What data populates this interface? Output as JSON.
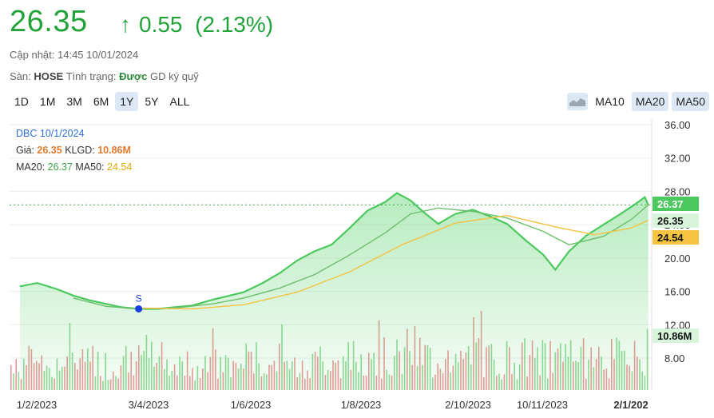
{
  "header": {
    "price": "26.35",
    "arrow": "↑",
    "change": "0.55",
    "change_pct": "(2.13%)",
    "updated_label": "Cập nhật:",
    "updated_value": "14:45 10/01/2024",
    "exchange_label": "Sàn:",
    "exchange_value": "HOSE",
    "status_label": "Tình trạng:",
    "status_value": "Được",
    "margin_text": "GD ký quỹ"
  },
  "ranges": [
    "1D",
    "1M",
    "3M",
    "6M",
    "1Y",
    "5Y",
    "ALL"
  ],
  "active_range": "1Y",
  "tools": {
    "ma10": "MA10",
    "ma20": "MA20",
    "ma50": "MA50",
    "chart_type_icon": "area-chart-icon"
  },
  "tooltip": {
    "ticker_date": "DBC 10/1/2024",
    "price_label": "Giá:",
    "price_value": "26.35",
    "vol_label": "KLGD:",
    "vol_value": "10.86M",
    "ma20_label": "MA20:",
    "ma20_value": "26.37",
    "ma50_label": "MA50:",
    "ma50_value": "24.54"
  },
  "colors": {
    "up": "#22a33a",
    "down": "#e06b6b",
    "price_line": "#4cc95e",
    "ma20": "#6cbf6c",
    "ma50": "#f3c242",
    "marker": "#1a3fe0"
  },
  "chart_data": {
    "type": "area",
    "y_ticks": [
      "36.00",
      "32.00",
      "28.00",
      "24.00",
      "20.00",
      "16.00",
      "12.00",
      "8.00"
    ],
    "ylim": [
      8,
      36
    ],
    "x_ticks": [
      "1/2/2023",
      "3/4/2023",
      "1/6/2023",
      "1/8/2023",
      "2/10/2023",
      "10/11/2023",
      "2/1/202"
    ],
    "last_labels": {
      "ma20": "26.37",
      "price": "26.35",
      "ma50": "24.54",
      "volume": "10.86M"
    },
    "signal_marker": "S",
    "price_series": [
      [
        "2023-01-10",
        16.6
      ],
      [
        "2023-01-20",
        17.0
      ],
      [
        "2023-01-31",
        16.3
      ],
      [
        "2023-02-10",
        15.5
      ],
      [
        "2023-02-20",
        14.9
      ],
      [
        "2023-03-01",
        14.5
      ],
      [
        "2023-03-10",
        14.1
      ],
      [
        "2023-03-20",
        13.9
      ],
      [
        "2023-03-31",
        13.9
      ],
      [
        "2023-04-10",
        14.1
      ],
      [
        "2023-04-20",
        14.3
      ],
      [
        "2023-05-02",
        15.0
      ],
      [
        "2023-05-10",
        15.4
      ],
      [
        "2023-05-20",
        15.9
      ],
      [
        "2023-05-31",
        17.0
      ],
      [
        "2023-06-10",
        18.2
      ],
      [
        "2023-06-20",
        19.7
      ],
      [
        "2023-06-30",
        20.8
      ],
      [
        "2023-07-10",
        21.6
      ],
      [
        "2023-07-20",
        23.5
      ],
      [
        "2023-07-31",
        25.7
      ],
      [
        "2023-08-10",
        26.7
      ],
      [
        "2023-08-17",
        27.8
      ],
      [
        "2023-08-25",
        26.9
      ],
      [
        "2023-09-01",
        25.6
      ],
      [
        "2023-09-10",
        24.1
      ],
      [
        "2023-09-20",
        25.3
      ],
      [
        "2023-09-30",
        25.8
      ],
      [
        "2023-10-10",
        25.0
      ],
      [
        "2023-10-20",
        24.1
      ],
      [
        "2023-10-31",
        22.1
      ],
      [
        "2023-11-10",
        20.4
      ],
      [
        "2023-11-17",
        18.6
      ],
      [
        "2023-11-25",
        20.8
      ],
      [
        "2023-12-05",
        22.7
      ],
      [
        "2023-12-15",
        24.0
      ],
      [
        "2023-12-25",
        25.3
      ],
      [
        "2024-01-02",
        26.4
      ],
      [
        "2024-01-08",
        27.3
      ],
      [
        "2024-01-10",
        26.35
      ]
    ],
    "ma20_series": [
      [
        "2023-02-10",
        15.2
      ],
      [
        "2023-03-01",
        14.2
      ],
      [
        "2023-03-20",
        13.9
      ],
      [
        "2023-04-10",
        14.0
      ],
      [
        "2023-05-02",
        14.5
      ],
      [
        "2023-05-20",
        15.2
      ],
      [
        "2023-06-10",
        16.4
      ],
      [
        "2023-06-30",
        18.0
      ],
      [
        "2023-07-20",
        20.3
      ],
      [
        "2023-08-10",
        23.0
      ],
      [
        "2023-08-25",
        25.3
      ],
      [
        "2023-09-10",
        26.0
      ],
      [
        "2023-09-30",
        25.6
      ],
      [
        "2023-10-20",
        24.8
      ],
      [
        "2023-11-10",
        23.2
      ],
      [
        "2023-11-25",
        21.6
      ],
      [
        "2023-12-15",
        22.6
      ],
      [
        "2023-12-31",
        24.6
      ],
      [
        "2024-01-10",
        26.37
      ]
    ],
    "ma50_series": [
      [
        "2023-03-20",
        14.0
      ],
      [
        "2023-04-20",
        13.9
      ],
      [
        "2023-05-20",
        14.4
      ],
      [
        "2023-06-20",
        15.9
      ],
      [
        "2023-07-20",
        18.3
      ],
      [
        "2023-08-20",
        21.6
      ],
      [
        "2023-09-20",
        24.2
      ],
      [
        "2023-10-20",
        25.1
      ],
      [
        "2023-11-20",
        23.6
      ],
      [
        "2023-12-10",
        22.8
      ],
      [
        "2023-12-31",
        23.6
      ],
      [
        "2024-01-10",
        24.54
      ]
    ],
    "volume_unit": "M",
    "volume_last": 10.86,
    "volume_max_axis": 14.6
  }
}
